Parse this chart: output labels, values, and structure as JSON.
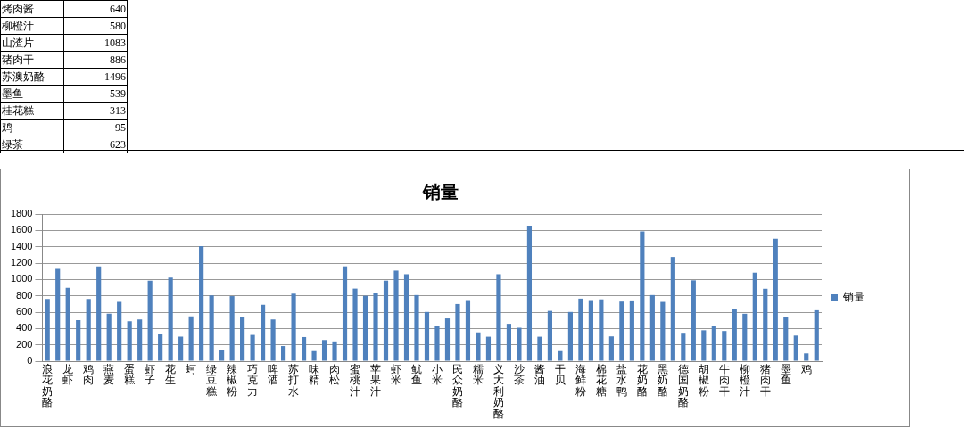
{
  "chart_data": {
    "type": "bar",
    "title": "销量",
    "categories": [
      "浪花奶酪",
      null,
      "龙虾",
      null,
      "鸡肉",
      null,
      "燕麦",
      null,
      "蛋糕",
      null,
      "虾子",
      null,
      "花生",
      null,
      "蚵",
      null,
      "绿豆糕",
      null,
      "辣椒粉",
      null,
      "巧克力",
      null,
      "啤酒",
      null,
      "苏打水",
      null,
      "味精",
      null,
      "肉松",
      null,
      "蜜桃汁",
      null,
      "苹果汁",
      null,
      "虾米",
      null,
      "鱿鱼",
      null,
      "小米",
      null,
      "民众奶酪",
      null,
      "糯米",
      null,
      "义大利奶酪",
      null,
      "沙茶",
      null,
      "酱油",
      null,
      "干贝",
      null,
      "海鲜粉",
      null,
      "棉花糖",
      null,
      "盐水鸭",
      null,
      "花奶酪",
      null,
      "黑奶酪",
      null,
      "德国奶酪",
      null,
      "胡椒粉",
      null,
      "牛肉干",
      null,
      "柳橙汁",
      null,
      "猪肉干",
      null,
      "墨鱼",
      null,
      "鸡",
      null
    ],
    "series": [
      {
        "name": "销量",
        "color": "#4f81bd",
        "values": [
          760,
          1130,
          897,
          501,
          760,
          1160,
          580,
          725,
          488,
          510,
          985,
          330,
          1024,
          299,
          549,
          1407,
          804,
          141,
          796,
          536,
          321,
          690,
          510,
          185,
          826,
          295,
          123,
          259,
          242,
          1160,
          888,
          800,
          831,
          985,
          1108,
          1064,
          809,
          602,
          435,
          523,
          699,
          747,
          352,
          299,
          1064,
          457,
          409,
          1657,
          299,
          615,
          123,
          602,
          765,
          747,
          756,
          303,
          729,
          743,
          1587,
          809,
          725,
          1275,
          347,
          989,
          378,
          431,
          369,
          640,
          580,
          1083,
          886,
          1496,
          539,
          313,
          95,
          623
        ]
      }
    ],
    "ylim": [
      0,
      1800
    ],
    "yticks": [
      0,
      200,
      400,
      600,
      800,
      1000,
      1200,
      1400,
      1600,
      1800
    ],
    "grid": "y",
    "legend": "right",
    "annotations": [
      "烤肉酱",
      "640",
      "柳橙汁",
      "580",
      "山渣片",
      "1083",
      "猪肉干",
      "886",
      "苏澳奶酪",
      "1496",
      "墨鱼",
      "539",
      "桂花糕",
      "313",
      "鸡",
      "95",
      "绿茶",
      "623"
    ]
  }
}
